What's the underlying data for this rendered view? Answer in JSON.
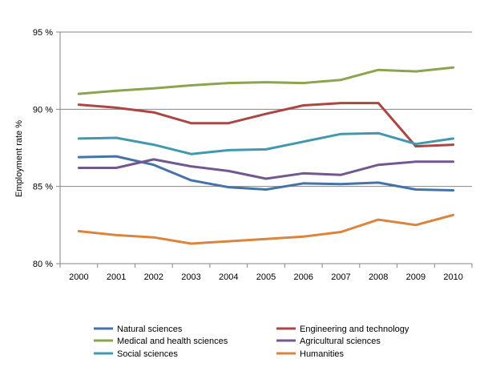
{
  "chart_data": {
    "type": "line",
    "title": "",
    "xlabel": "",
    "ylabel": "Employment rate %",
    "ylim": [
      80,
      95
    ],
    "yticks": [
      "80 %",
      "85 %",
      "90 %",
      "95 %"
    ],
    "ytick_values": [
      80,
      85,
      90,
      95
    ],
    "grid": "horizontal",
    "legend_position": "bottom",
    "categories": [
      "2000",
      "2001",
      "2002",
      "2003",
      "2004",
      "2005",
      "2006",
      "2007",
      "2008",
      "2009",
      "2010"
    ],
    "series": [
      {
        "name": "Natural sciences",
        "color": "#4572A7",
        "values": [
          86.9,
          86.95,
          86.4,
          85.4,
          84.95,
          84.8,
          85.2,
          85.15,
          85.25,
          84.8,
          84.75
        ]
      },
      {
        "name": "Engineering and technology",
        "color": "#AA4643",
        "values": [
          90.3,
          90.1,
          89.8,
          89.1,
          89.1,
          89.7,
          90.25,
          90.4,
          90.4,
          87.6,
          87.7
        ]
      },
      {
        "name": "Medical and health sciences",
        "color": "#89A54E",
        "values": [
          91.0,
          91.2,
          91.35,
          91.55,
          91.7,
          91.75,
          91.7,
          91.9,
          92.55,
          92.45,
          92.7
        ]
      },
      {
        "name": "Agricultural sciences",
        "color": "#71588F",
        "values": [
          86.2,
          86.2,
          86.75,
          86.3,
          86.0,
          85.5,
          85.85,
          85.75,
          86.4,
          86.6,
          86.6
        ]
      },
      {
        "name": "Social sciences",
        "color": "#4198AF",
        "values": [
          88.1,
          88.15,
          87.7,
          87.1,
          87.35,
          87.4,
          87.9,
          88.4,
          88.45,
          87.75,
          88.1
        ]
      },
      {
        "name": "Humanities",
        "color": "#DB843D",
        "values": [
          82.1,
          81.85,
          81.7,
          81.3,
          81.45,
          81.6,
          81.75,
          82.05,
          82.85,
          82.5,
          83.15
        ]
      }
    ]
  }
}
